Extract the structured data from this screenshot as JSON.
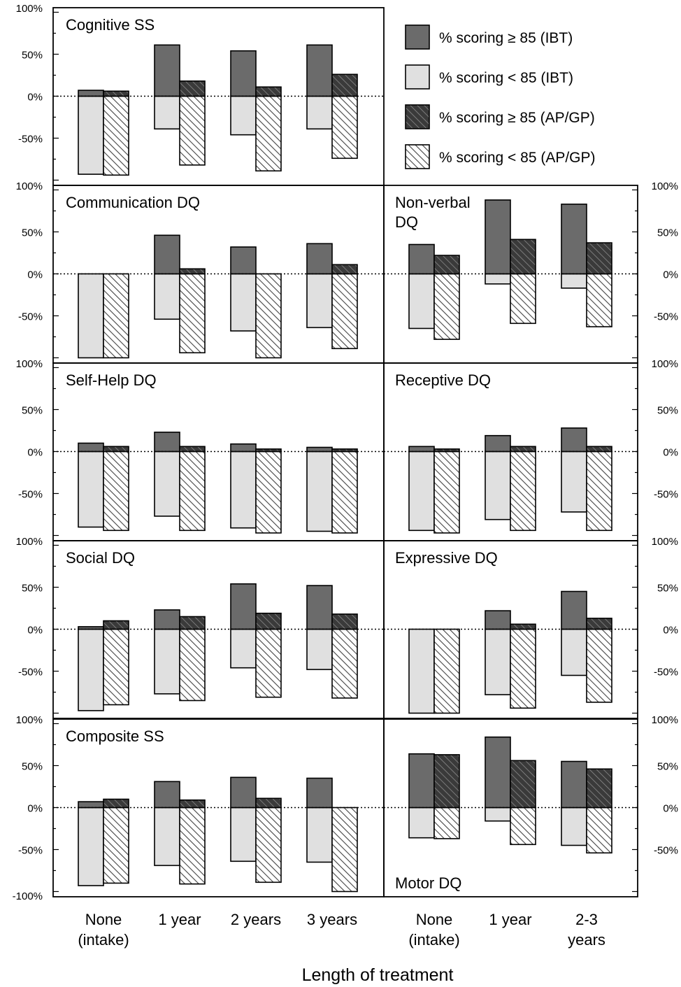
{
  "colors": {
    "ibt_high": "#6b6b6b",
    "ibt_low": "#e0e0e0",
    "apgp_high": "#3a3a3a",
    "apgp_low": "#ffffff",
    "hatch": "#444444"
  },
  "legend": [
    {
      "key": "ibt_high",
      "label": "% scoring ≥ 85 (IBT)"
    },
    {
      "key": "ibt_low",
      "label": "% scoring < 85 (IBT)"
    },
    {
      "key": "apgp_high",
      "label": "% scoring ≥ 85 (AP/GP)"
    },
    {
      "key": "apgp_low",
      "label": "% scoring < 85 (AP/GP)"
    }
  ],
  "axis_title": "Length of treatment",
  "x_labels_left": [
    "None\n(intake)",
    "1 year",
    "2 years",
    "3 years"
  ],
  "x_labels_right": [
    "None\n(intake)",
    "1 year",
    "2-3\nyears"
  ],
  "y_ticks_left": {
    "cognitive": [
      "100%",
      "50%",
      "0%",
      "-50%"
    ],
    "communication": [
      "100%",
      "50%",
      "0%",
      "-50%"
    ],
    "selfhelp": [
      "100%",
      "50%",
      "0%",
      "-50%"
    ],
    "social": [
      "100%",
      "50%",
      "0%",
      "-50%"
    ],
    "composite": [
      "100%",
      "50%",
      "0%",
      "-50%",
      "-100%"
    ]
  },
  "y_ticks_right": {
    "nonverbal": [
      "100%",
      "50%",
      "0%",
      "-50%"
    ],
    "receptive": [
      "100%",
      "50%",
      "0%",
      "-50%"
    ],
    "expressive": [
      "100%",
      "50%",
      "0%",
      "-50%"
    ],
    "motor": [
      "100%",
      "50%",
      "0%",
      "-50%"
    ]
  },
  "chart_data": [
    {
      "type": "bar",
      "id": "cognitive",
      "title": "Cognitive SS",
      "categories": [
        "None (intake)",
        "1 year",
        "2 years",
        "3 years"
      ],
      "ylim": [
        -100,
        100
      ],
      "series": [
        {
          "name": "% scoring ≥ 85 (IBT)",
          "values": [
            7,
            61,
            54,
            61
          ]
        },
        {
          "name": "% scoring < 85 (IBT)",
          "values": [
            -93,
            -39,
            -46,
            -39
          ]
        },
        {
          "name": "% scoring ≥ 85 (AP/GP)",
          "values": [
            6,
            18,
            11,
            26
          ]
        },
        {
          "name": "% scoring < 85 (AP/GP)",
          "values": [
            -94,
            -82,
            -89,
            -74
          ]
        }
      ]
    },
    {
      "type": "bar",
      "id": "communication",
      "title": "Communication DQ",
      "categories": [
        "None (intake)",
        "1 year",
        "2 years",
        "3 years"
      ],
      "ylim": [
        -100,
        100
      ],
      "series": [
        {
          "name": "% scoring ≥ 85 (IBT)",
          "values": [
            0,
            46,
            32,
            36
          ]
        },
        {
          "name": "% scoring < 85 (IBT)",
          "values": [
            -100,
            -54,
            -68,
            -64
          ]
        },
        {
          "name": "% scoring ≥ 85 (AP/GP)",
          "values": [
            0,
            6,
            0,
            11
          ]
        },
        {
          "name": "% scoring < 85 (AP/GP)",
          "values": [
            -100,
            -94,
            -100,
            -89
          ]
        }
      ]
    },
    {
      "type": "bar",
      "id": "selfhelp",
      "title": "Self-Help DQ",
      "categories": [
        "None (intake)",
        "1 year",
        "2 years",
        "3 years"
      ],
      "ylim": [
        -100,
        100
      ],
      "series": [
        {
          "name": "% scoring ≥ 85 (IBT)",
          "values": [
            10,
            23,
            9,
            5
          ]
        },
        {
          "name": "% scoring < 85 (IBT)",
          "values": [
            -90,
            -77,
            -91,
            -95
          ]
        },
        {
          "name": "% scoring ≥ 85 (AP/GP)",
          "values": [
            6,
            6,
            3,
            3
          ]
        },
        {
          "name": "% scoring < 85 (AP/GP)",
          "values": [
            -94,
            -94,
            -97,
            -97
          ]
        }
      ]
    },
    {
      "type": "bar",
      "id": "social",
      "title": "Social DQ",
      "categories": [
        "None (intake)",
        "1 year",
        "2 years",
        "3 years"
      ],
      "ylim": [
        -100,
        100
      ],
      "series": [
        {
          "name": "% scoring ≥ 85 (IBT)",
          "values": [
            3,
            23,
            54,
            52
          ]
        },
        {
          "name": "% scoring < 85 (IBT)",
          "values": [
            -97,
            -77,
            -46,
            -48
          ]
        },
        {
          "name": "% scoring ≥ 85 (AP/GP)",
          "values": [
            10,
            15,
            19,
            18
          ]
        },
        {
          "name": "% scoring < 85 (AP/GP)",
          "values": [
            -90,
            -85,
            -81,
            -82
          ]
        }
      ]
    },
    {
      "type": "bar",
      "id": "composite",
      "title": "Composite SS",
      "categories": [
        "None (intake)",
        "1 year",
        "2 years",
        "3 years"
      ],
      "ylim": [
        -100,
        100
      ],
      "series": [
        {
          "name": "% scoring ≥ 85 (IBT)",
          "values": [
            7,
            31,
            36,
            35
          ]
        },
        {
          "name": "% scoring < 85 (IBT)",
          "values": [
            -93,
            -69,
            -64,
            -65
          ]
        },
        {
          "name": "% scoring ≥ 85 (AP/GP)",
          "values": [
            10,
            9,
            11,
            0
          ]
        },
        {
          "name": "% scoring < 85 (AP/GP)",
          "values": [
            -90,
            -91,
            -89,
            -100
          ]
        }
      ]
    },
    {
      "type": "bar",
      "id": "nonverbal",
      "title": "Non-verbal\nDQ",
      "categories": [
        "None (intake)",
        "1 year",
        "2-3 years"
      ],
      "ylim": [
        -100,
        100
      ],
      "series": [
        {
          "name": "% scoring ≥ 85 (IBT)",
          "values": [
            35,
            88,
            83
          ]
        },
        {
          "name": "% scoring < 85 (IBT)",
          "values": [
            -65,
            -12,
            -17
          ]
        },
        {
          "name": "% scoring ≥ 85 (AP/GP)",
          "values": [
            22,
            41,
            37
          ]
        },
        {
          "name": "% scoring < 85 (AP/GP)",
          "values": [
            -78,
            -59,
            -63
          ]
        }
      ]
    },
    {
      "type": "bar",
      "id": "receptive",
      "title": "Receptive DQ",
      "categories": [
        "None (intake)",
        "1 year",
        "2-3 years"
      ],
      "ylim": [
        -100,
        100
      ],
      "series": [
        {
          "name": "% scoring ≥ 85 (IBT)",
          "values": [
            6,
            19,
            28
          ]
        },
        {
          "name": "% scoring < 85 (IBT)",
          "values": [
            -94,
            -81,
            -72
          ]
        },
        {
          "name": "% scoring ≥ 85 (AP/GP)",
          "values": [
            3,
            6,
            6
          ]
        },
        {
          "name": "% scoring < 85 (AP/GP)",
          "values": [
            -97,
            -94,
            -94
          ]
        }
      ]
    },
    {
      "type": "bar",
      "id": "expressive",
      "title": "Expressive DQ",
      "categories": [
        "None (intake)",
        "1 year",
        "2-3 years"
      ],
      "ylim": [
        -100,
        100
      ],
      "series": [
        {
          "name": "% scoring ≥ 85 (IBT)",
          "values": [
            0,
            22,
            45
          ]
        },
        {
          "name": "% scoring < 85 (IBT)",
          "values": [
            -100,
            -78,
            -55
          ]
        },
        {
          "name": "% scoring ≥ 85 (AP/GP)",
          "values": [
            0,
            6,
            13
          ]
        },
        {
          "name": "% scoring < 85 (AP/GP)",
          "values": [
            -100,
            -94,
            -87
          ]
        }
      ]
    },
    {
      "type": "bar",
      "id": "motor",
      "title": "Motor DQ",
      "categories": [
        "None (intake)",
        "1 year",
        "2-3 years"
      ],
      "ylim": [
        -100,
        100
      ],
      "series": [
        {
          "name": "% scoring ≥ 85 (IBT)",
          "values": [
            64,
            84,
            55
          ]
        },
        {
          "name": "% scoring < 85 (IBT)",
          "values": [
            -36,
            -16,
            -45
          ]
        },
        {
          "name": "% scoring ≥ 85 (AP/GP)",
          "values": [
            63,
            56,
            46
          ]
        },
        {
          "name": "% scoring < 85 (AP/GP)",
          "values": [
            -37,
            -44,
            -54
          ]
        }
      ]
    }
  ]
}
